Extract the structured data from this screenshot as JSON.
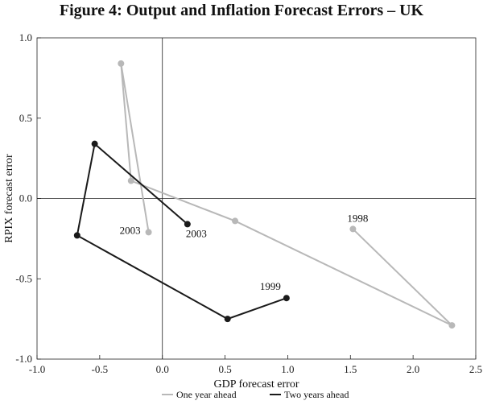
{
  "title": "Figure 4: Output and Inflation Forecast Errors – UK",
  "chart_data": {
    "type": "line",
    "title": "Figure 4: Output and Inflation Forecast Errors – UK",
    "xlabel": "GDP forecast error",
    "ylabel": "RPIX forecast error",
    "xlim": [
      -1.0,
      2.5
    ],
    "ylim": [
      -1.0,
      1.0
    ],
    "xticks": [
      "-1.0",
      "-0.5",
      "0.0",
      "0.5",
      "1.0",
      "1.5",
      "2.0",
      "2.5"
    ],
    "yticks": [
      "-1.0",
      "-0.5",
      "0.0",
      "0.5",
      "1.0"
    ],
    "grid": false,
    "legend_position": "bottom",
    "series": [
      {
        "name": "One year ahead",
        "color": "#b8b8b8",
        "points": [
          {
            "x": 1.52,
            "y": -0.19
          },
          {
            "x": 2.31,
            "y": -0.79
          },
          {
            "x": 0.58,
            "y": -0.14
          },
          {
            "x": -0.25,
            "y": 0.11
          },
          {
            "x": -0.33,
            "y": 0.84
          },
          {
            "x": -0.11,
            "y": -0.21
          }
        ]
      },
      {
        "name": "Two years ahead",
        "color": "#1a1a1a",
        "points": [
          {
            "x": 0.99,
            "y": -0.62
          },
          {
            "x": 0.52,
            "y": -0.75
          },
          {
            "x": -0.68,
            "y": -0.23
          },
          {
            "x": -0.54,
            "y": 0.34
          },
          {
            "x": 0.2,
            "y": -0.16
          }
        ]
      }
    ],
    "annotations": [
      {
        "text": "1998",
        "series": 0,
        "point": 0
      },
      {
        "text": "2003",
        "series": 0,
        "point": 5
      },
      {
        "text": "1999",
        "series": 1,
        "point": 0
      },
      {
        "text": "2003",
        "series": 1,
        "point": 4
      }
    ]
  }
}
